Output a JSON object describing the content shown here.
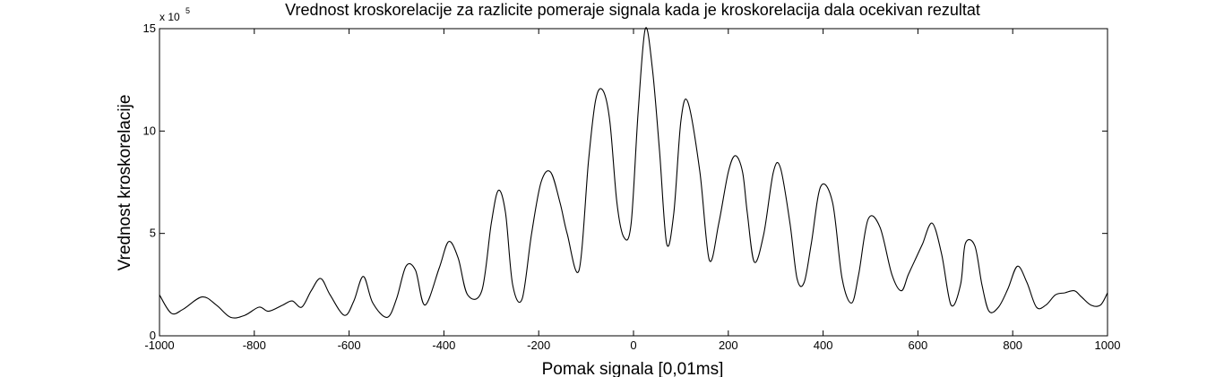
{
  "chart_data": {
    "type": "line",
    "title": "Vrednost kroskorelacije za razlicite pomeraje signala kada je kroskorelacija dala ocekivan rezultat",
    "xlabel": "Pomak signala [0,01ms]",
    "ylabel": "Vrednost kroskorelacije",
    "y_multiplier_label": "x 10",
    "y_multiplier_exponent": "5",
    "xlim": [
      -1000,
      1000
    ],
    "ylim": [
      0,
      15
    ],
    "xticks": [
      -1000,
      -800,
      -600,
      -400,
      -200,
      0,
      200,
      400,
      600,
      800,
      1000
    ],
    "yticks": [
      0,
      5,
      10,
      15
    ],
    "line_color": "#000000",
    "series": [
      {
        "x": [
          -1000,
          -975,
          -950,
          -910,
          -880,
          -850,
          -820,
          -790,
          -770,
          -740,
          -720,
          -700,
          -680,
          -660,
          -640,
          -610,
          -590,
          -570,
          -550,
          -520,
          -500,
          -480,
          -460,
          -440,
          -410,
          -390,
          -370,
          -350,
          -320,
          -300,
          -285,
          -270,
          -255,
          -235,
          -215,
          -195,
          -175,
          -155,
          -140,
          -115,
          -95,
          -80,
          -65,
          -50,
          -35,
          -20,
          -5,
          10,
          25,
          40,
          55,
          70,
          85,
          100,
          115,
          140,
          160,
          180,
          200,
          215,
          230,
          240,
          255,
          275,
          295,
          310,
          330,
          345,
          360,
          375,
          395,
          420,
          440,
          460,
          475,
          495,
          520,
          545,
          565,
          580,
          600,
          610,
          630,
          650,
          670,
          690,
          700,
          720,
          735,
          750,
          770,
          790,
          810,
          830,
          850,
          870,
          890,
          910,
          930,
          945,
          965,
          985,
          1000
        ],
        "values": [
          2.0,
          1.1,
          1.3,
          1.9,
          1.5,
          0.9,
          1.0,
          1.4,
          1.2,
          1.5,
          1.7,
          1.4,
          2.2,
          2.8,
          2.0,
          1.0,
          1.7,
          2.9,
          1.6,
          0.9,
          1.8,
          3.4,
          3.2,
          1.5,
          3.3,
          4.6,
          3.8,
          2.0,
          2.2,
          5.5,
          7.1,
          6.0,
          2.5,
          1.8,
          5.0,
          7.5,
          8.0,
          6.5,
          5.0,
          3.2,
          8.5,
          11.5,
          12.0,
          10.5,
          6.5,
          4.8,
          5.5,
          11.0,
          15.0,
          13.0,
          9.0,
          4.5,
          6.0,
          10.5,
          11.4,
          8.0,
          3.7,
          5.5,
          8.0,
          8.8,
          8.0,
          6.0,
          3.6,
          5.0,
          8.0,
          8.2,
          5.5,
          2.8,
          2.6,
          4.5,
          7.3,
          6.5,
          2.8,
          1.6,
          3.0,
          5.7,
          5.3,
          3.0,
          2.2,
          3.0,
          4.0,
          4.5,
          5.5,
          4.0,
          1.5,
          2.5,
          4.5,
          4.4,
          2.5,
          1.2,
          1.4,
          2.3,
          3.4,
          2.6,
          1.4,
          1.5,
          2.0,
          2.1,
          2.2,
          1.9,
          1.5,
          1.5,
          2.1
        ]
      }
    ]
  }
}
